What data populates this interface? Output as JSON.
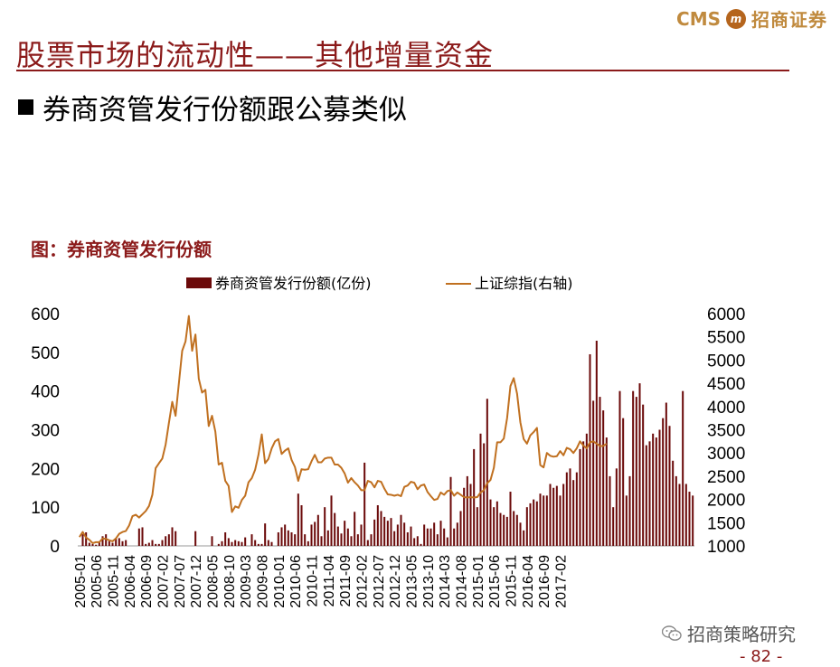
{
  "header": {
    "title": "股票市场的流动性——其他增量资金",
    "logo_en": "CMS",
    "logo_cn": "招商证券"
  },
  "bullet": "券商资管发行份额跟公募类似",
  "figure": {
    "caption": "图：券商资管发行份额"
  },
  "footer": {
    "wechat": "招商策略研究",
    "page": "- 82 -"
  },
  "colors": {
    "bar": "#6b0a0a",
    "line": "#c07020",
    "title": "#8b1a1a"
  },
  "chart_data": {
    "type": "bar+line",
    "title": "券商资管发行份额",
    "x_tick_labels": [
      "2005-01",
      "2005-06",
      "2005-11",
      "2006-04",
      "2006-09",
      "2007-02",
      "2007-07",
      "2007-12",
      "2008-05",
      "2008-10",
      "2009-03",
      "2009-08",
      "2010-01",
      "2010-06",
      "2010-11",
      "2011-04",
      "2011-09",
      "2012-02",
      "2012-07",
      "2012-12",
      "2013-05",
      "2013-10",
      "2014-03",
      "2014-08",
      "2015-01",
      "2015-06",
      "2015-11",
      "2016-04",
      "2016-09",
      "2017-02"
    ],
    "y_left": {
      "label": "券商资管发行份额(亿份)",
      "ticks": [
        "0",
        "100",
        "200",
        "300",
        "400",
        "500",
        "600"
      ],
      "range": [
        0,
        600
      ]
    },
    "y_right": {
      "label": "上证综指(右轴)",
      "ticks": [
        "1000",
        "1500",
        "2000",
        "2500",
        "3000",
        "3500",
        "4000",
        "4500",
        "5000",
        "5500",
        "6000"
      ],
      "range": [
        1000,
        6000
      ]
    },
    "series": [
      {
        "name": "券商资管发行份额(亿份)",
        "type": "bar",
        "axis": "left",
        "start": "2005-01",
        "values": [
          0,
          30,
          35,
          8,
          5,
          3,
          10,
          25,
          30,
          12,
          8,
          20,
          20,
          12,
          15,
          0,
          0,
          0,
          45,
          48,
          5,
          8,
          15,
          5,
          5,
          15,
          25,
          30,
          48,
          38,
          0,
          0,
          0,
          0,
          0,
          38,
          0,
          0,
          0,
          0,
          25,
          0,
          5,
          12,
          35,
          20,
          10,
          15,
          12,
          10,
          22,
          0,
          30,
          15,
          5,
          5,
          58,
          15,
          10,
          0,
          35,
          48,
          55,
          40,
          35,
          30,
          135,
          105,
          30,
          12,
          55,
          62,
          80,
          25,
          100,
          40,
          130,
          85,
          50,
          32,
          65,
          45,
          25,
          88,
          30,
          55,
          215,
          15,
          30,
          68,
          105,
          90,
          75,
          65,
          72,
          38,
          55,
          80,
          60,
          35,
          50,
          20,
          25,
          5,
          55,
          45,
          45,
          60,
          30,
          65,
          45,
          22,
          178,
          45,
          60,
          90,
          150,
          180,
          160,
          250,
          100,
          290,
          265,
          380,
          120,
          100,
          115,
          85,
          80,
          75,
          140,
          90,
          80,
          60,
          40,
          100,
          110,
          120,
          115,
          135,
          130,
          130,
          160,
          150,
          155,
          130,
          160,
          190,
          200,
          170,
          190,
          250,
          270,
          290,
          495,
          375,
          530,
          385,
          350,
          280,
          180,
          100,
          200,
          400,
          330,
          130,
          180,
          400,
          385,
          420,
          365,
          260,
          270,
          290,
          280,
          300,
          330,
          370,
          310,
          220,
          180,
          160,
          400,
          160,
          140,
          130
        ]
      },
      {
        "name": "上证综指(右轴)",
        "type": "line",
        "axis": "right",
        "start": "2005-01",
        "values": [
          1190,
          1300,
          1180,
          1130,
          1060,
          1080,
          1080,
          1160,
          1150,
          1120,
          1100,
          1160,
          1260,
          1300,
          1320,
          1440,
          1640,
          1670,
          1610,
          1680,
          1750,
          1860,
          2100,
          2675,
          2780,
          2880,
          3180,
          3650,
          4100,
          3800,
          4500,
          5200,
          5400,
          5950,
          5200,
          5550,
          4600,
          4300,
          4360,
          3580,
          3800,
          3460,
          2750,
          2790,
          2400,
          2290,
          1730,
          1850,
          1820,
          1990,
          2080,
          2370,
          2460,
          2640,
          2960,
          3400,
          2780,
          2870,
          3100,
          3250,
          3300,
          2980,
          3050,
          3100,
          2850,
          2700,
          2400,
          2650,
          2640,
          2650,
          2820,
          2960,
          2800,
          2800,
          2880,
          2900,
          2900,
          2750,
          2750,
          2680,
          2560,
          2360,
          2460,
          2370,
          2300,
          2200,
          2200,
          2400,
          2370,
          2260,
          2400,
          2380,
          2230,
          2110,
          2100,
          2080,
          2100,
          2070,
          2270,
          2300,
          2380,
          2360,
          2220,
          2300,
          2320,
          2160,
          2070,
          1990,
          2010,
          2150,
          2100,
          2180,
          2200,
          2080,
          2150,
          2100,
          2050,
          2040,
          2050,
          2040,
          2050,
          2150,
          2200,
          2350,
          2420,
          2680,
          3230,
          3230,
          3310,
          3750,
          4440,
          4610,
          4280,
          3660,
          3300,
          3200,
          3380,
          3450,
          3540,
          2740,
          2690,
          3000,
          2940,
          2920,
          2930,
          3040,
          2950,
          3110,
          3080,
          3000,
          3100,
          3250,
          3160,
          3100,
          3230,
          3250,
          3200,
          3150,
          3150,
          3200
        ]
      }
    ],
    "legend": [
      "券商资管发行份额(亿份)",
      "上证综指(右轴)"
    ],
    "legend_position": "top"
  }
}
